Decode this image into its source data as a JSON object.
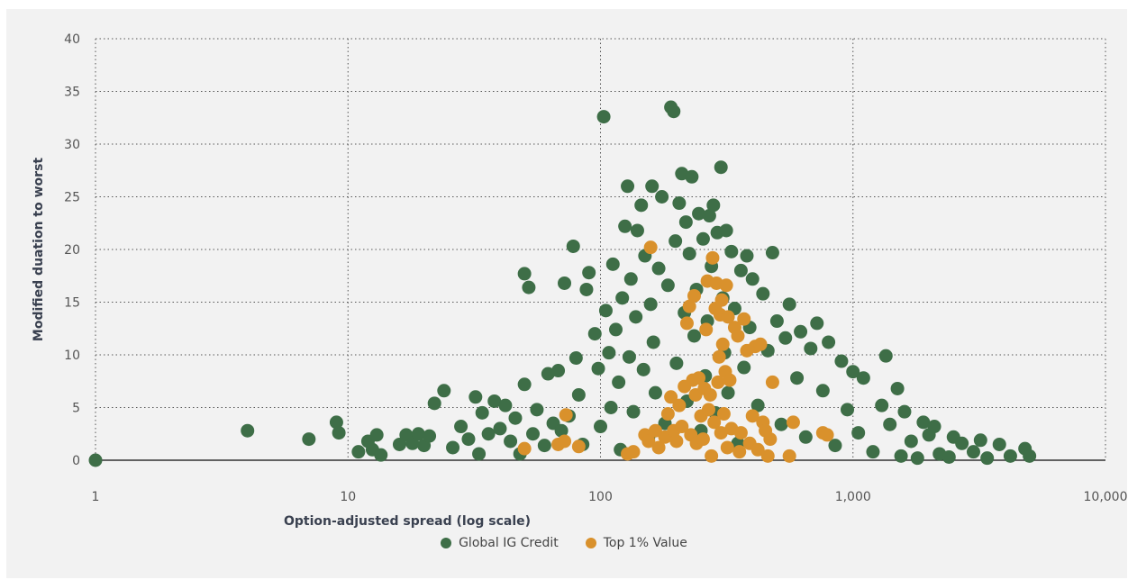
{
  "chart_data": {
    "type": "scatter",
    "xlabel": "Option-adjusted spread (log scale)",
    "ylabel": "Modified duation to worst",
    "xscale": "log",
    "xlim": [
      1,
      10000
    ],
    "ylim": [
      0,
      40
    ],
    "x_ticks": [
      1,
      10,
      100,
      1000,
      10000
    ],
    "x_tick_labels": [
      "1",
      "10",
      "100",
      "1,000",
      "10,000"
    ],
    "y_ticks": [
      0,
      5,
      10,
      15,
      20,
      25,
      30,
      35,
      40
    ],
    "y_tick_labels": [
      "0",
      "5",
      "10",
      "15",
      "20",
      "25",
      "30",
      "35",
      "40"
    ],
    "grid": "dotted",
    "legend_position": "bottom-center",
    "series": [
      {
        "name": "Global IG Credit",
        "color": "#3e6e47",
        "points": [
          [
            1,
            0
          ],
          [
            4,
            2.8
          ],
          [
            7,
            2
          ],
          [
            9,
            3.6
          ],
          [
            9.2,
            2.6
          ],
          [
            11,
            0.8
          ],
          [
            12,
            1.8
          ],
          [
            12.5,
            1
          ],
          [
            13,
            2.4
          ],
          [
            13.5,
            0.5
          ],
          [
            16,
            1.5
          ],
          [
            17,
            2.4
          ],
          [
            18,
            1.6
          ],
          [
            19,
            2.5
          ],
          [
            20,
            1.4
          ],
          [
            21,
            2.3
          ],
          [
            22,
            5.4
          ],
          [
            24,
            6.6
          ],
          [
            26,
            1.2
          ],
          [
            28,
            3.2
          ],
          [
            30,
            2
          ],
          [
            32,
            6
          ],
          [
            33,
            0.6
          ],
          [
            34,
            4.5
          ],
          [
            36,
            2.5
          ],
          [
            38,
            5.6
          ],
          [
            40,
            3
          ],
          [
            42,
            5.2
          ],
          [
            44,
            1.8
          ],
          [
            46,
            4
          ],
          [
            48,
            0.6
          ],
          [
            50,
            7.2
          ],
          [
            50,
            17.7
          ],
          [
            52,
            16.4
          ],
          [
            54,
            2.5
          ],
          [
            56,
            4.8
          ],
          [
            60,
            1.4
          ],
          [
            62,
            8.2
          ],
          [
            65,
            3.5
          ],
          [
            68,
            8.5
          ],
          [
            70,
            2.8
          ],
          [
            72,
            16.8
          ],
          [
            75,
            4.2
          ],
          [
            78,
            20.3
          ],
          [
            80,
            9.7
          ],
          [
            82,
            6.2
          ],
          [
            85,
            1.5
          ],
          [
            88,
            16.2
          ],
          [
            90,
            17.8
          ],
          [
            95,
            12
          ],
          [
            98,
            8.7
          ],
          [
            100,
            3.2
          ],
          [
            103,
            32.6
          ],
          [
            105,
            14.2
          ],
          [
            108,
            10.2
          ],
          [
            110,
            5
          ],
          [
            112,
            18.6
          ],
          [
            115,
            12.4
          ],
          [
            118,
            7.4
          ],
          [
            120,
            1
          ],
          [
            122,
            15.4
          ],
          [
            125,
            22.2
          ],
          [
            128,
            26
          ],
          [
            130,
            9.8
          ],
          [
            132,
            17.2
          ],
          [
            135,
            4.6
          ],
          [
            138,
            13.6
          ],
          [
            140,
            21.8
          ],
          [
            145,
            24.2
          ],
          [
            148,
            8.6
          ],
          [
            150,
            19.4
          ],
          [
            155,
            2.2
          ],
          [
            158,
            14.8
          ],
          [
            160,
            26
          ],
          [
            162,
            11.2
          ],
          [
            165,
            6.4
          ],
          [
            170,
            18.2
          ],
          [
            175,
            25
          ],
          [
            180,
            3.5
          ],
          [
            185,
            16.6
          ],
          [
            190,
            33.5
          ],
          [
            195,
            33.1
          ],
          [
            198,
            20.8
          ],
          [
            200,
            9.2
          ],
          [
            205,
            24.4
          ],
          [
            210,
            27.2
          ],
          [
            215,
            14
          ],
          [
            218,
            22.6
          ],
          [
            220,
            5.6
          ],
          [
            225,
            19.6
          ],
          [
            230,
            26.9
          ],
          [
            235,
            11.8
          ],
          [
            240,
            16.2
          ],
          [
            245,
            23.4
          ],
          [
            250,
            2.8
          ],
          [
            255,
            21
          ],
          [
            260,
            8
          ],
          [
            265,
            13.2
          ],
          [
            270,
            23.2
          ],
          [
            275,
            18.4
          ],
          [
            280,
            24.2
          ],
          [
            285,
            4.5
          ],
          [
            290,
            21.6
          ],
          [
            300,
            27.8
          ],
          [
            305,
            15.4
          ],
          [
            310,
            10.2
          ],
          [
            315,
            21.8
          ],
          [
            320,
            6.4
          ],
          [
            330,
            19.8
          ],
          [
            340,
            14.4
          ],
          [
            350,
            1.6
          ],
          [
            360,
            18
          ],
          [
            370,
            8.8
          ],
          [
            380,
            19.4
          ],
          [
            390,
            12.6
          ],
          [
            400,
            17.2
          ],
          [
            420,
            5.2
          ],
          [
            440,
            15.8
          ],
          [
            460,
            10.4
          ],
          [
            480,
            19.7
          ],
          [
            500,
            13.2
          ],
          [
            520,
            3.4
          ],
          [
            540,
            11.6
          ],
          [
            560,
            14.8
          ],
          [
            600,
            7.8
          ],
          [
            620,
            12.2
          ],
          [
            650,
            2.2
          ],
          [
            680,
            10.6
          ],
          [
            720,
            13
          ],
          [
            760,
            6.6
          ],
          [
            800,
            11.2
          ],
          [
            850,
            1.4
          ],
          [
            900,
            9.4
          ],
          [
            950,
            4.8
          ],
          [
            1000,
            8.4
          ],
          [
            1050,
            2.6
          ],
          [
            1100,
            7.8
          ],
          [
            1200,
            0.8
          ],
          [
            1300,
            5.2
          ],
          [
            1350,
            9.9
          ],
          [
            1400,
            3.4
          ],
          [
            1500,
            6.8
          ],
          [
            1550,
            0.4
          ],
          [
            1600,
            4.6
          ],
          [
            1700,
            1.8
          ],
          [
            1800,
            0.2
          ],
          [
            1900,
            3.6
          ],
          [
            2000,
            2.4
          ],
          [
            2100,
            3.2
          ],
          [
            2200,
            0.6
          ],
          [
            2400,
            0.3
          ],
          [
            2500,
            2.2
          ],
          [
            2700,
            1.6
          ],
          [
            3000,
            0.8
          ],
          [
            3200,
            1.9
          ],
          [
            3400,
            0.2
          ],
          [
            3800,
            1.5
          ],
          [
            4200,
            0.4
          ],
          [
            4800,
            1.1
          ],
          [
            5000,
            0.4
          ]
        ]
      },
      {
        "name": "Top 1% Value",
        "color": "#d9912c",
        "points": [
          [
            50,
            1.1
          ],
          [
            68,
            1.5
          ],
          [
            72,
            1.8
          ],
          [
            73,
            4.3
          ],
          [
            82,
            1.3
          ],
          [
            128,
            0.6
          ],
          [
            135,
            0.8
          ],
          [
            150,
            2.4
          ],
          [
            155,
            1.8
          ],
          [
            158,
            20.2
          ],
          [
            165,
            2.8
          ],
          [
            170,
            1.2
          ],
          [
            180,
            2.2
          ],
          [
            185,
            4.4
          ],
          [
            190,
            6
          ],
          [
            195,
            2.8
          ],
          [
            200,
            1.8
          ],
          [
            205,
            5.2
          ],
          [
            210,
            3.2
          ],
          [
            215,
            7
          ],
          [
            220,
            13
          ],
          [
            225,
            14.6
          ],
          [
            228,
            2.4
          ],
          [
            232,
            7.6
          ],
          [
            235,
            15.6
          ],
          [
            238,
            6.2
          ],
          [
            240,
            1.6
          ],
          [
            245,
            7.8
          ],
          [
            250,
            4.2
          ],
          [
            255,
            2
          ],
          [
            258,
            6.8
          ],
          [
            262,
            12.4
          ],
          [
            265,
            17
          ],
          [
            268,
            4.8
          ],
          [
            272,
            6.2
          ],
          [
            275,
            0.4
          ],
          [
            278,
            19.2
          ],
          [
            282,
            3.6
          ],
          [
            285,
            14.4
          ],
          [
            288,
            16.8
          ],
          [
            292,
            7.4
          ],
          [
            295,
            9.8
          ],
          [
            298,
            13.8
          ],
          [
            300,
            2.6
          ],
          [
            302,
            15.2
          ],
          [
            305,
            11
          ],
          [
            308,
            4.4
          ],
          [
            312,
            8.4
          ],
          [
            315,
            16.6
          ],
          [
            318,
            1.2
          ],
          [
            320,
            13.6
          ],
          [
            325,
            7.6
          ],
          [
            330,
            3
          ],
          [
            340,
            12.6
          ],
          [
            350,
            11.8
          ],
          [
            355,
            0.8
          ],
          [
            360,
            2.6
          ],
          [
            370,
            13.4
          ],
          [
            380,
            10.4
          ],
          [
            390,
            1.6
          ],
          [
            400,
            4.2
          ],
          [
            410,
            10.8
          ],
          [
            420,
            1
          ],
          [
            430,
            11
          ],
          [
            440,
            3.6
          ],
          [
            450,
            2.8
          ],
          [
            460,
            0.4
          ],
          [
            470,
            2
          ],
          [
            480,
            7.4
          ],
          [
            560,
            0.4
          ],
          [
            580,
            3.6
          ],
          [
            760,
            2.6
          ],
          [
            790,
            2.4
          ]
        ]
      }
    ]
  }
}
